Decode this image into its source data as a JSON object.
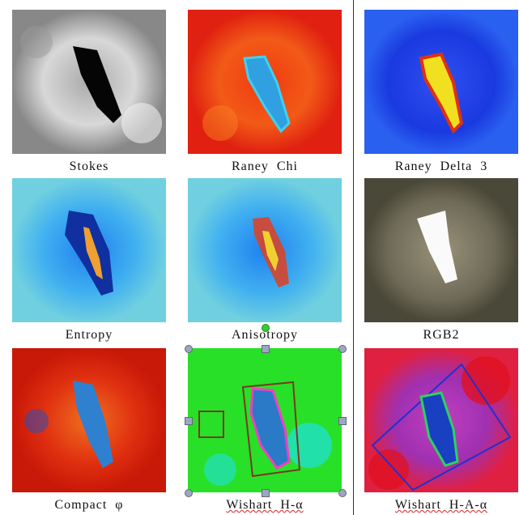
{
  "panels": [
    {
      "caption": "Stokes"
    },
    {
      "caption": "Raney Chi"
    },
    {
      "caption": "Raney Delta 3"
    },
    {
      "caption": "Entropy"
    },
    {
      "caption": "Anisotropy"
    },
    {
      "caption": "RGB2"
    },
    {
      "caption": "Compact φ"
    },
    {
      "caption": "Wishart H-α"
    },
    {
      "caption": "Wishart H-A-α"
    }
  ]
}
